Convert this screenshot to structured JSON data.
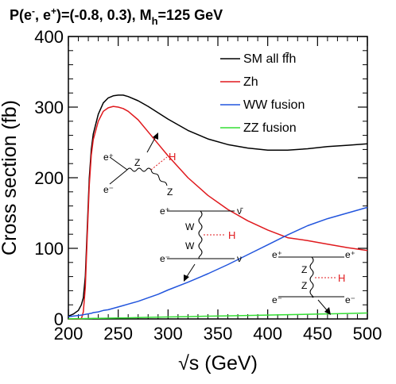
{
  "title": {
    "prefix": "P(e",
    "sup_minus": "-",
    "mid": ", e",
    "sup_plus": "+",
    "suffix": ")=(-0.8, 0.3), M",
    "sub_h": "h",
    "tail": "=125 GeV"
  },
  "chart_data": {
    "type": "line",
    "xlabel": "√s (GeV)",
    "ylabel": "Cross section (fb)",
    "xlim": [
      200,
      500
    ],
    "ylim": [
      0,
      400
    ],
    "x_ticks": [
      200,
      250,
      300,
      350,
      400,
      450,
      500
    ],
    "y_ticks": [
      0,
      100,
      200,
      300,
      400
    ],
    "grid": false,
    "legend_position": "top-right",
    "x": [
      200,
      205,
      210,
      213,
      215,
      217,
      219,
      221,
      223,
      225,
      230,
      235,
      240,
      245,
      250,
      255,
      260,
      270,
      280,
      290,
      300,
      320,
      340,
      360,
      380,
      400,
      420,
      440,
      460,
      480,
      500
    ],
    "series": [
      {
        "name": "SM all ff̄h",
        "color": "#000000",
        "values": [
          4,
          7,
          12,
          20,
          30,
          60,
          130,
          200,
          240,
          262,
          290,
          306,
          313,
          316,
          317,
          317,
          315,
          309,
          301,
          292,
          283,
          267,
          255,
          247,
          242,
          239,
          239,
          241,
          244,
          246,
          248
        ]
      },
      {
        "name": "Zh",
        "color": "#e0191d",
        "values": [
          0,
          0,
          0,
          0,
          10,
          45,
          120,
          190,
          232,
          254,
          280,
          294,
          299,
          301,
          300,
          298,
          294,
          282,
          265,
          248,
          231,
          200,
          175,
          155,
          139,
          126,
          115,
          111,
          106,
          101,
          97
        ]
      },
      {
        "name": "WW fusion",
        "color": "#2255dd",
        "values": [
          3,
          4,
          5,
          5.5,
          6,
          6.5,
          7,
          7.5,
          8,
          9,
          10,
          12,
          13,
          15,
          17,
          19,
          21,
          25,
          30,
          35,
          41,
          52,
          64,
          77,
          91,
          105,
          119,
          132,
          142,
          150,
          158
        ]
      },
      {
        "name": "ZZ fusion",
        "color": "#33dd33",
        "values": [
          0.3,
          0.35,
          0.4,
          0.45,
          0.5,
          0.55,
          0.6,
          0.65,
          0.7,
          0.75,
          0.9,
          1,
          1.1,
          1.2,
          1.4,
          1.5,
          1.6,
          1.9,
          2.2,
          2.5,
          2.8,
          3.3,
          3.9,
          4.4,
          5,
          5.5,
          6.1,
          6.6,
          7.2,
          7.8,
          8.4
        ]
      }
    ]
  },
  "diagrams": {
    "zh": {
      "e_plus": "e⁺",
      "e_minus": "e⁻",
      "z1": "Z",
      "h": "H",
      "z2": "Z"
    },
    "ww": {
      "e_plus": "e⁺",
      "e_minus": "e⁻",
      "nubar": "ν̄",
      "nu": "ν",
      "w1": "W",
      "w2": "W",
      "h": "H"
    },
    "zz": {
      "e_plus_in": "e⁺",
      "e_minus_in": "e⁻",
      "e_plus_out": "e⁺",
      "e_minus_out": "e⁻",
      "z1": "Z",
      "z2": "Z",
      "h": "H"
    }
  }
}
